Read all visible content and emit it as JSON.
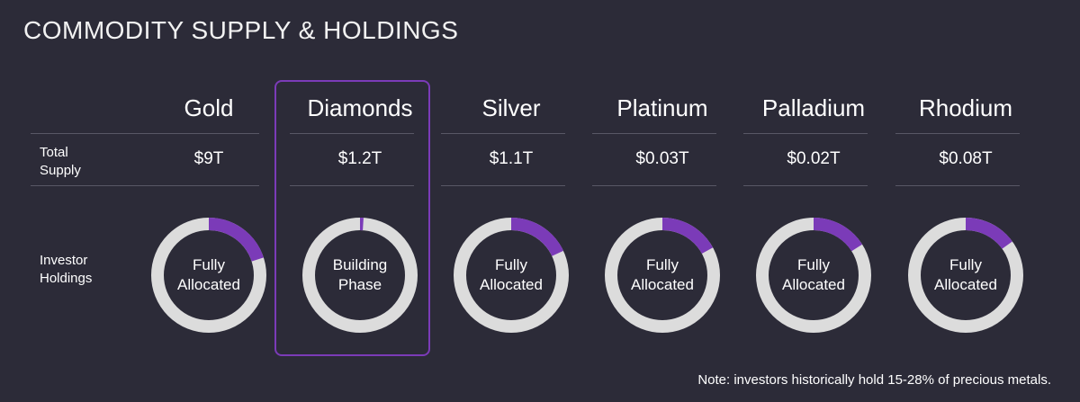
{
  "title": "COMMODITY SUPPLY & HOLDINGS",
  "rows": {
    "supply_label_1": "Total",
    "supply_label_2": "Supply",
    "holdings_label_1": "Investor",
    "holdings_label_2": "Holdings"
  },
  "colors": {
    "background": "#2c2b38",
    "accent_purple": "#7b3bb8",
    "ring_gray": "#dcdcdc",
    "divider": "#595866"
  },
  "highlighted_column": "Diamonds",
  "note": "Note: investors historically hold 15-28% of precious metals.",
  "chart_data": {
    "type": "table",
    "columns": [
      {
        "name": "Gold",
        "supply": "$9T",
        "status_1": "Fully",
        "status_2": "Allocated",
        "holding_fraction": 0.2
      },
      {
        "name": "Diamonds",
        "supply": "$1.2T",
        "status_1": "Building",
        "status_2": "Phase",
        "holding_fraction": 0.01
      },
      {
        "name": "Silver",
        "supply": "$1.1T",
        "status_1": "Fully",
        "status_2": "Allocated",
        "holding_fraction": 0.18
      },
      {
        "name": "Platinum",
        "supply": "$0.03T",
        "status_1": "Fully",
        "status_2": "Allocated",
        "holding_fraction": 0.17
      },
      {
        "name": "Palladium",
        "supply": "$0.02T",
        "status_1": "Fully",
        "status_2": "Allocated",
        "holding_fraction": 0.16
      },
      {
        "name": "Rhodium",
        "supply": "$0.08T",
        "status_1": "Fully",
        "status_2": "Allocated",
        "holding_fraction": 0.15
      }
    ]
  }
}
